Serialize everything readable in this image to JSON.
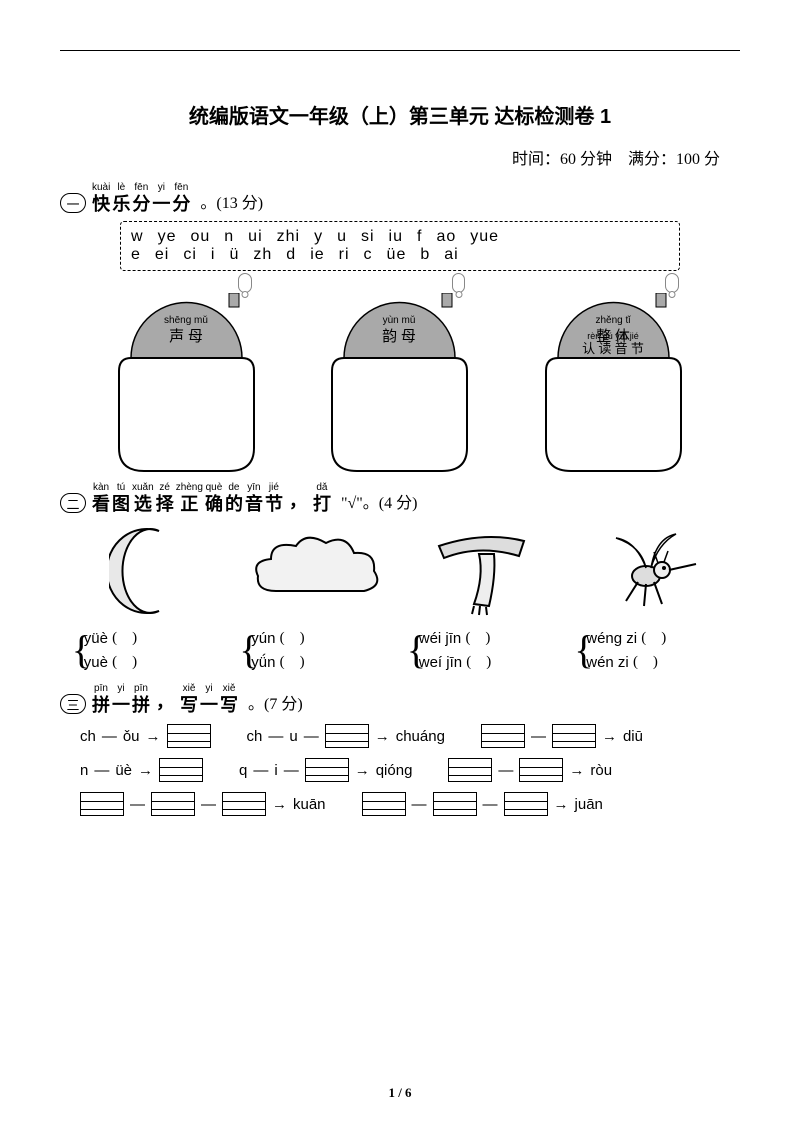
{
  "title": "统编版语文一年级（上）第三单元 达标检测卷 1",
  "meta": {
    "time": "时间：60 分钟",
    "score": "满分：100 分"
  },
  "sections": {
    "q1": {
      "num": "一",
      "heading": [
        {
          "py": "kuài",
          "cn": "快"
        },
        {
          "py": "lè",
          "cn": "乐"
        },
        {
          "py": "fēn",
          "cn": "分"
        },
        {
          "py": "yi",
          "cn": "一"
        },
        {
          "py": "fēn",
          "cn": "分"
        }
      ],
      "pts": "。(13 分)",
      "box": {
        "row1": [
          "w",
          "ye",
          "ou",
          "n",
          "ui",
          "zhi",
          "y",
          "u",
          "si",
          "iu",
          "f",
          "ao",
          "yue"
        ],
        "row2": [
          "e",
          "ei",
          "ci",
          "i",
          "ü",
          "zh",
          "d",
          "ie",
          "ri",
          "c",
          "üe",
          "b",
          "ai"
        ]
      },
      "pots": [
        {
          "py": "shēng mǔ",
          "cn": "声 母",
          "bubble": null
        },
        {
          "py": "yùn mǔ",
          "cn": "韵 母",
          "bubble": null
        },
        {
          "py": "zhěng tǐ",
          "cn": "整 体",
          "py2": "rèn dú yīn jié",
          "cn2": "认 读 音 节"
        }
      ]
    },
    "q2": {
      "num": "二",
      "heading": [
        {
          "py": "kàn",
          "cn": "看"
        },
        {
          "py": "tú",
          "cn": "图"
        },
        {
          "py": "xuǎn",
          "cn": "选"
        },
        {
          "py": "zé",
          "cn": "择"
        },
        {
          "py": "zhèng",
          "cn": "正"
        },
        {
          "py": "què",
          "cn": "确"
        },
        {
          "py": "de",
          "cn": "的"
        },
        {
          "py": "yīn",
          "cn": "音"
        },
        {
          "py": "jié",
          "cn": "节"
        }
      ],
      "tail_pre": "，",
      "tail_char": {
        "py": "dǎ",
        "cn": "打"
      },
      "tail_post": " \"√\"。(4 分)",
      "images": [
        "moon",
        "cloud",
        "scarf",
        "mosquito"
      ],
      "choices": [
        {
          "a": "yüè",
          "b": "yuè"
        },
        {
          "a": "yún",
          "b": "yǘn"
        },
        {
          "a": "wéi jīn",
          "b": "weí jīn"
        },
        {
          "a": "wéng zi",
          "b": "wén zi"
        }
      ]
    },
    "q3": {
      "num": "三",
      "heading": [
        {
          "py": "pīn",
          "cn": "拼"
        },
        {
          "py": "yi",
          "cn": "一"
        },
        {
          "py": "pīn",
          "cn": "拼"
        }
      ],
      "heading2": [
        {
          "py": "xiě",
          "cn": "写"
        },
        {
          "py": "yi",
          "cn": "一"
        },
        {
          "py": "xiě",
          "cn": "写"
        }
      ],
      "pts": "。(7 分)",
      "rows": [
        [
          {
            "type": "text",
            "v": "ch"
          },
          {
            "type": "dash"
          },
          {
            "type": "text",
            "v": "ǒu"
          },
          {
            "type": "arr"
          },
          {
            "type": "grid"
          },
          {
            "type": "gap"
          },
          {
            "type": "text",
            "v": "ch"
          },
          {
            "type": "dash"
          },
          {
            "type": "text",
            "v": "u"
          },
          {
            "type": "dash"
          },
          {
            "type": "grid"
          },
          {
            "type": "arr"
          },
          {
            "type": "text",
            "v": "chuáng"
          },
          {
            "type": "gap"
          },
          {
            "type": "grid"
          },
          {
            "type": "dash"
          },
          {
            "type": "grid"
          },
          {
            "type": "arr"
          },
          {
            "type": "text",
            "v": "diū"
          }
        ],
        [
          {
            "type": "text",
            "v": "n"
          },
          {
            "type": "dash"
          },
          {
            "type": "text",
            "v": "üè"
          },
          {
            "type": "arr"
          },
          {
            "type": "grid"
          },
          {
            "type": "gap"
          },
          {
            "type": "text",
            "v": "q"
          },
          {
            "type": "dash"
          },
          {
            "type": "text",
            "v": "i"
          },
          {
            "type": "dash"
          },
          {
            "type": "grid"
          },
          {
            "type": "arr"
          },
          {
            "type": "text",
            "v": "qióng"
          },
          {
            "type": "gap"
          },
          {
            "type": "grid"
          },
          {
            "type": "dash"
          },
          {
            "type": "grid"
          },
          {
            "type": "arr"
          },
          {
            "type": "text",
            "v": "ròu"
          }
        ],
        [
          {
            "type": "grid"
          },
          {
            "type": "dash"
          },
          {
            "type": "grid"
          },
          {
            "type": "dash"
          },
          {
            "type": "grid"
          },
          {
            "type": "arr"
          },
          {
            "type": "text",
            "v": "kuān"
          },
          {
            "type": "gap"
          },
          {
            "type": "grid"
          },
          {
            "type": "dash"
          },
          {
            "type": "grid"
          },
          {
            "type": "dash"
          },
          {
            "type": "grid"
          },
          {
            "type": "arr"
          },
          {
            "type": "text",
            "v": "juān"
          }
        ]
      ]
    }
  },
  "footer": "1 / 6",
  "colors": {
    "pot_lid": "#a9a9a9",
    "pot_body": "#ffffff",
    "pot_stroke": "#000000"
  }
}
